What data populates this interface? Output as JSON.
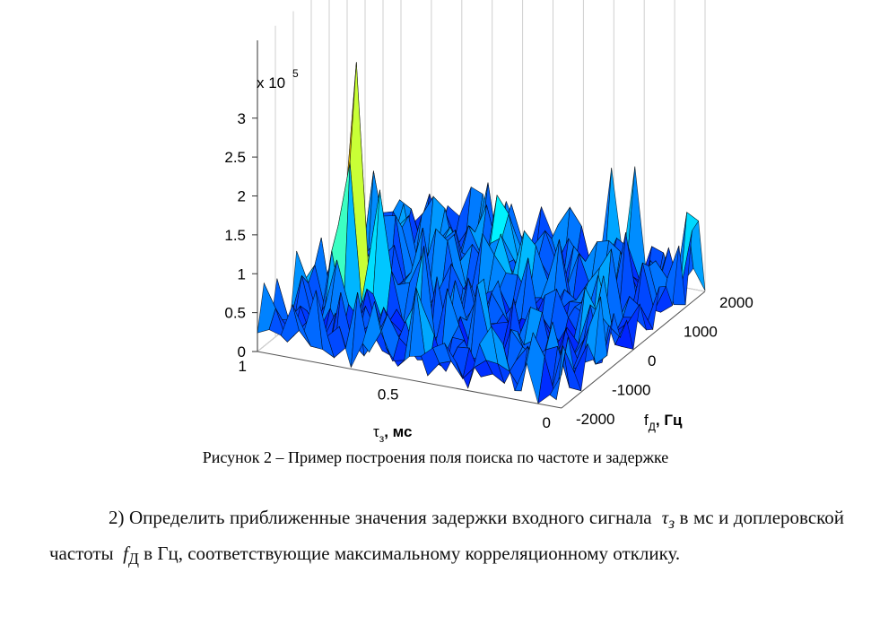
{
  "chart_data": {
    "type": "surface-3d",
    "title": "",
    "zscale_label": "x 10",
    "zscale_exp": "5",
    "z_ticks": [
      "3",
      "2.5",
      "2",
      "1.5",
      "1",
      "0.5",
      "0"
    ],
    "z_values": [
      3,
      2.5,
      2,
      1.5,
      1,
      0.5,
      0
    ],
    "tau_ticks": [
      "1",
      "0.5",
      "0"
    ],
    "tau_values": [
      1,
      0.5,
      0
    ],
    "f_ticks": [
      "2000",
      "1000",
      "0",
      "-1000",
      "-2000"
    ],
    "f_values": [
      2000,
      1000,
      0,
      -1000,
      -2000
    ],
    "xlabel": {
      "sym": "τ",
      "sub": "з",
      "unit": ", мс"
    },
    "ylabel": {
      "sym": "f",
      "sub": "Д",
      "unit": ", Гц"
    },
    "zlim": [
      0,
      300000
    ],
    "tau_lim": [
      0,
      1
    ],
    "f_lim": [
      -2000,
      2000
    ],
    "peak": {
      "tau": 0.85,
      "f": -600,
      "z": 280000
    },
    "noise_level": 60000,
    "colormap": "jet",
    "grid": true
  },
  "caption": "Рисунок 2 – Пример построения поля поиска по частоте и задержке",
  "paragraph": {
    "number": "2)",
    "text1": "Определить приближенные значения задержки входного сигнала",
    "tau_sym": "τ",
    "tau_sub": "з",
    "text2": "в мс и доплеровской частоты",
    "f_sym": "f",
    "f_sub": "Д",
    "text3": "в Гц, соответствующие максимальному корреляционному отклику."
  }
}
